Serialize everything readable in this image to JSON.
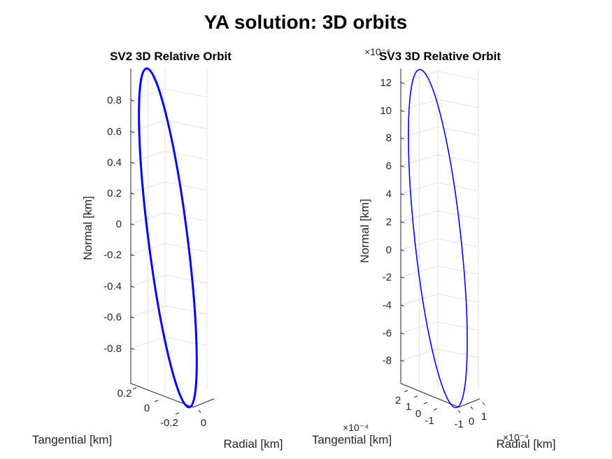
{
  "figure": {
    "title": "YA solution: 3D orbits"
  },
  "chart_data": [
    {
      "type": "line",
      "view": "3d",
      "title": "SV2 3D Relative Orbit",
      "xlabel": "Radial [km]",
      "ylabel": "Tangential [km]",
      "zlabel": "Normal [km]",
      "z_ticks": [
        "-0.8",
        "-0.6",
        "-0.4",
        "-0.2",
        "0",
        "0.2",
        "0.4",
        "0.6",
        "0.8"
      ],
      "y_ticks": [
        "0.2",
        "0",
        "-0.2"
      ],
      "x_ticks": [
        "0"
      ],
      "zlim": [
        -0.98,
        0.98
      ],
      "grid": true,
      "series": [
        {
          "color": "#0000ff",
          "shape": "closed-ellipse",
          "z_range": [
            -0.98,
            0.98
          ]
        }
      ]
    },
    {
      "type": "line",
      "view": "3d",
      "title": "SV3 3D Relative Orbit",
      "xlabel": "Radial [km]",
      "ylabel": "Tangential [km]",
      "zlabel": "Normal [km]",
      "z_exponent": "×10⁻⁴",
      "x_exponent": "×10⁻⁴",
      "y_exponent": "×10⁻⁴",
      "z_ticks": [
        "-8",
        "-6",
        "-4",
        "-2",
        "0",
        "2",
        "4",
        "6",
        "8",
        "10",
        "12"
      ],
      "y_ticks": [
        "2",
        "1",
        "0",
        "-1"
      ],
      "x_ticks": [
        "-1",
        "0",
        "1"
      ],
      "zlim": [
        -9.8,
        13
      ],
      "grid": true,
      "series": [
        {
          "color": "#0000ff",
          "shape": "closed-ellipse",
          "z_range": [
            -9.8,
            12.9
          ]
        }
      ]
    }
  ]
}
